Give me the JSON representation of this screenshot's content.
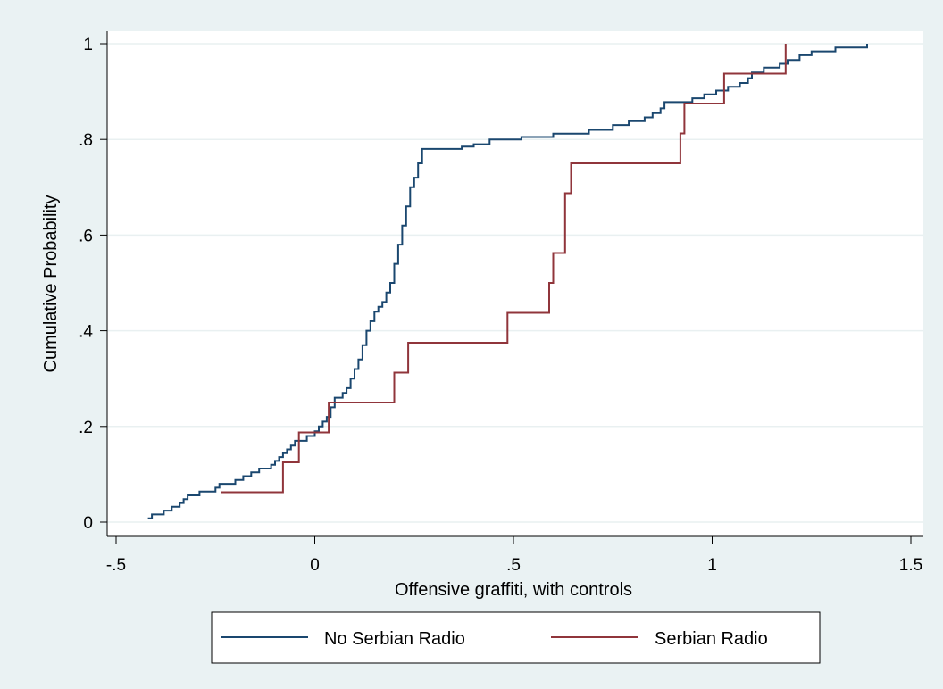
{
  "chart_data": {
    "type": "line",
    "step": true,
    "title": "",
    "xlabel": "Offensive graffiti, with controls",
    "ylabel": "Cumulative Probability",
    "xlim": [
      -0.5,
      1.5
    ],
    "ylim": [
      0,
      1
    ],
    "x_ticks": [
      -0.5,
      0,
      0.5,
      1,
      1.5
    ],
    "x_tick_labels": [
      "-.5",
      "0",
      ".5",
      "1",
      "1.5"
    ],
    "y_ticks": [
      0,
      0.2,
      0.4,
      0.6,
      0.8,
      1
    ],
    "y_tick_labels": [
      "0",
      ".2",
      ".4",
      ".6",
      ".8",
      "1"
    ],
    "grid": "horizontal",
    "legend_position": "bottom",
    "series": [
      {
        "name": "No Serbian Radio",
        "color": "#1a476f",
        "points": [
          [
            -0.42,
            0.008
          ],
          [
            -0.41,
            0.016
          ],
          [
            -0.38,
            0.024
          ],
          [
            -0.36,
            0.032
          ],
          [
            -0.34,
            0.04
          ],
          [
            -0.33,
            0.048
          ],
          [
            -0.32,
            0.056
          ],
          [
            -0.29,
            0.064
          ],
          [
            -0.25,
            0.072
          ],
          [
            -0.24,
            0.08
          ],
          [
            -0.2,
            0.088
          ],
          [
            -0.18,
            0.096
          ],
          [
            -0.16,
            0.104
          ],
          [
            -0.14,
            0.112
          ],
          [
            -0.11,
            0.12
          ],
          [
            -0.1,
            0.128
          ],
          [
            -0.09,
            0.136
          ],
          [
            -0.08,
            0.144
          ],
          [
            -0.07,
            0.152
          ],
          [
            -0.06,
            0.16
          ],
          [
            -0.05,
            0.17
          ],
          [
            -0.02,
            0.18
          ],
          [
            0.0,
            0.19
          ],
          [
            0.01,
            0.2
          ],
          [
            0.02,
            0.21
          ],
          [
            0.03,
            0.22
          ],
          [
            0.04,
            0.24
          ],
          [
            0.05,
            0.26
          ],
          [
            0.07,
            0.27
          ],
          [
            0.08,
            0.28
          ],
          [
            0.09,
            0.3
          ],
          [
            0.1,
            0.32
          ],
          [
            0.11,
            0.34
          ],
          [
            0.12,
            0.37
          ],
          [
            0.13,
            0.4
          ],
          [
            0.14,
            0.42
          ],
          [
            0.15,
            0.44
          ],
          [
            0.16,
            0.45
          ],
          [
            0.17,
            0.46
          ],
          [
            0.18,
            0.48
          ],
          [
            0.19,
            0.5
          ],
          [
            0.2,
            0.54
          ],
          [
            0.21,
            0.58
          ],
          [
            0.22,
            0.62
          ],
          [
            0.23,
            0.66
          ],
          [
            0.24,
            0.7
          ],
          [
            0.25,
            0.72
          ],
          [
            0.26,
            0.75
          ],
          [
            0.27,
            0.78
          ],
          [
            0.37,
            0.785
          ],
          [
            0.4,
            0.79
          ],
          [
            0.44,
            0.8
          ],
          [
            0.52,
            0.805
          ],
          [
            0.6,
            0.812
          ],
          [
            0.69,
            0.82
          ],
          [
            0.75,
            0.83
          ],
          [
            0.79,
            0.838
          ],
          [
            0.83,
            0.846
          ],
          [
            0.85,
            0.855
          ],
          [
            0.87,
            0.865
          ],
          [
            0.88,
            0.878
          ],
          [
            0.95,
            0.886
          ],
          [
            0.98,
            0.894
          ],
          [
            1.01,
            0.902
          ],
          [
            1.04,
            0.91
          ],
          [
            1.07,
            0.918
          ],
          [
            1.09,
            0.928
          ],
          [
            1.1,
            0.94
          ],
          [
            1.13,
            0.95
          ],
          [
            1.17,
            0.958
          ],
          [
            1.19,
            0.966
          ],
          [
            1.22,
            0.976
          ],
          [
            1.25,
            0.984
          ],
          [
            1.31,
            0.992
          ],
          [
            1.39,
            1.0
          ]
        ]
      },
      {
        "name": "Serbian Radio",
        "color": "#90353b",
        "points": [
          [
            -0.235,
            0.0625
          ],
          [
            -0.08,
            0.125
          ],
          [
            -0.04,
            0.1875
          ],
          [
            0.035,
            0.25
          ],
          [
            0.2,
            0.3125
          ],
          [
            0.235,
            0.375
          ],
          [
            0.485,
            0.4375
          ],
          [
            0.59,
            0.5
          ],
          [
            0.6,
            0.5625
          ],
          [
            0.63,
            0.6875
          ],
          [
            0.645,
            0.75
          ],
          [
            0.92,
            0.8125
          ],
          [
            0.93,
            0.875
          ],
          [
            1.03,
            0.9375
          ],
          [
            1.185,
            1.0
          ]
        ]
      }
    ]
  }
}
